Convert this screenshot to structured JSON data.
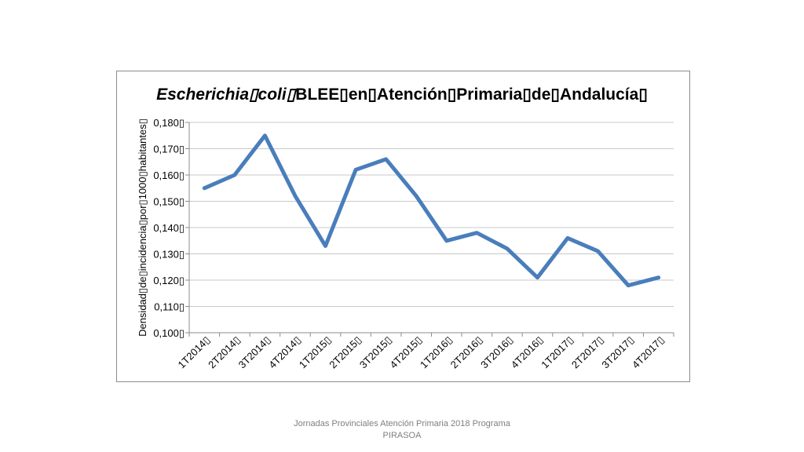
{
  "chart_data": {
    "type": "line",
    "title_italic": "Escherichia▯coli▯",
    "title_rest": "BLEE▯en▯Atención▯Primaria▯de▯Andalucía▯",
    "ylabel": "Densidad▯de▯incidencia▯por▯1000▯habitantes▯",
    "xlabel": "",
    "categories": [
      "1T2014▯",
      "2T2014▯",
      "3T2014▯",
      "4T2014▯",
      "1T2015▯",
      "2T2015▯",
      "3T2015▯",
      "4T2015▯",
      "1T2016▯",
      "2T2016▯",
      "3T2016▯",
      "4T2016▯",
      "1T2017▯",
      "2T2017▯",
      "3T2017▯",
      "4T2017▯"
    ],
    "series": [
      {
        "values": [
          0.155,
          0.16,
          0.175,
          0.152,
          0.133,
          0.162,
          0.166,
          0.152,
          0.135,
          0.138,
          0.132,
          0.121,
          0.136,
          0.131,
          0.118,
          0.121
        ]
      }
    ],
    "yticks": [
      "0,100▯",
      "0,110▯",
      "0,120▯",
      "0,130▯",
      "0,140▯",
      "0,150▯",
      "0,160▯",
      "0,170▯",
      "0,180▯"
    ],
    "ylim": [
      0.1,
      0.18
    ],
    "grid": true,
    "line_color": "#4a7ebb"
  },
  "footer": {
    "line1": "Jornadas Provinciales Atención Primaria 2018  Programa",
    "line2": "PIRASOA"
  }
}
